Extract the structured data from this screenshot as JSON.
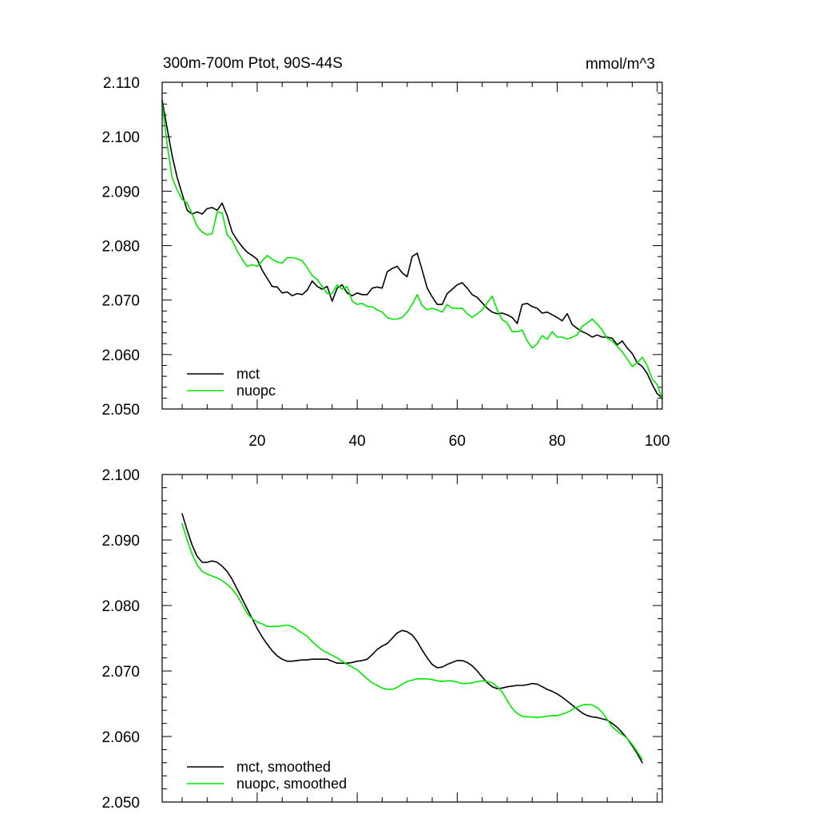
{
  "colors": {
    "mct": "#000000",
    "nuopc": "#00e600",
    "frame": "#000000",
    "background": "#ffffff"
  },
  "chart_data": [
    {
      "type": "line",
      "title_left": "300m-700m Ptot, 90S-44S",
      "title_right": "mmol/m^3",
      "xlim": [
        1,
        101
      ],
      "ylim": [
        2.05,
        2.11
      ],
      "xticks": [
        20,
        40,
        60,
        80,
        100
      ],
      "xtick_labels": [
        "20",
        "40",
        "60",
        "80",
        "100"
      ],
      "yticks": [
        2.05,
        2.06,
        2.07,
        2.08,
        2.09,
        2.1,
        2.11
      ],
      "ytick_labels": [
        "2.050",
        "2.060",
        "2.070",
        "2.080",
        "2.090",
        "2.100",
        "2.110"
      ],
      "legend_position": "bottom-left",
      "series": [
        {
          "name": "mct",
          "color": "#000000",
          "x": [
            1,
            2,
            3,
            4,
            5,
            6,
            7,
            8,
            9,
            10,
            11,
            12,
            13,
            14,
            15,
            16,
            17,
            18,
            19,
            20,
            21,
            22,
            23,
            24,
            25,
            26,
            27,
            28,
            29,
            30,
            31,
            32,
            33,
            34,
            35,
            36,
            37,
            38,
            39,
            40,
            41,
            42,
            43,
            44,
            45,
            46,
            47,
            48,
            49,
            50,
            51,
            52,
            53,
            54,
            55,
            56,
            57,
            58,
            59,
            60,
            61,
            62,
            63,
            64,
            65,
            66,
            67,
            68,
            69,
            70,
            71,
            72,
            73,
            74,
            75,
            76,
            77,
            78,
            79,
            80,
            81,
            82,
            83,
            84,
            85,
            86,
            87,
            88,
            89,
            90,
            91,
            92,
            93,
            94,
            95,
            96,
            97,
            98,
            99,
            100,
            101
          ],
          "y": [
            2.1067,
            2.1015,
            2.0965,
            2.0925,
            2.0895,
            2.0865,
            2.0858,
            2.0862,
            2.0858,
            2.0868,
            2.087,
            2.0865,
            2.0878,
            2.0855,
            2.0825,
            2.081,
            2.0798,
            2.0788,
            2.0782,
            2.0775,
            2.0755,
            2.074,
            2.0725,
            2.0724,
            2.0713,
            2.0715,
            2.0708,
            2.0712,
            2.071,
            2.0718,
            2.0735,
            2.0725,
            2.072,
            2.0725,
            2.0698,
            2.0722,
            2.0728,
            2.0713,
            2.0708,
            2.0713,
            2.071,
            2.071,
            2.0722,
            2.0724,
            2.0722,
            2.0752,
            2.0758,
            2.0762,
            2.075,
            2.0743,
            2.078,
            2.0786,
            2.0755,
            2.0722,
            2.0706,
            2.0692,
            2.0692,
            2.0712,
            2.072,
            2.0728,
            2.0732,
            2.0722,
            2.071,
            2.0705,
            2.0695,
            2.0685,
            2.0678,
            2.0675,
            2.0676,
            2.0673,
            2.0668,
            2.0657,
            2.0692,
            2.0694,
            2.0688,
            2.0685,
            2.0676,
            2.0678,
            2.0673,
            2.0668,
            2.0662,
            2.0675,
            2.0655,
            2.0648,
            2.0642,
            2.0638,
            2.0632,
            2.0636,
            2.0632,
            2.0632,
            2.063,
            2.0618,
            2.0625,
            2.0612,
            2.0602,
            2.0585,
            2.0578,
            2.0565,
            2.0545,
            2.0528,
            2.052
          ]
        },
        {
          "name": "nuopc",
          "color": "#00e600",
          "x": [
            1,
            2,
            3,
            4,
            5,
            6,
            7,
            8,
            9,
            10,
            11,
            12,
            13,
            14,
            15,
            16,
            17,
            18,
            19,
            20,
            21,
            22,
            23,
            24,
            25,
            26,
            27,
            28,
            29,
            30,
            31,
            32,
            33,
            34,
            35,
            36,
            37,
            38,
            39,
            40,
            41,
            42,
            43,
            44,
            45,
            46,
            47,
            48,
            49,
            50,
            51,
            52,
            53,
            54,
            55,
            56,
            57,
            58,
            59,
            60,
            61,
            62,
            63,
            64,
            65,
            66,
            67,
            68,
            69,
            70,
            71,
            72,
            73,
            74,
            75,
            76,
            77,
            78,
            79,
            80,
            81,
            82,
            83,
            84,
            85,
            86,
            87,
            88,
            89,
            90,
            91,
            92,
            93,
            94,
            95,
            96,
            97,
            98,
            99,
            100,
            101
          ],
          "y": [
            2.1062,
            2.0985,
            2.0925,
            2.0902,
            2.0885,
            2.0878,
            2.0858,
            2.0835,
            2.0825,
            2.082,
            2.0822,
            2.0862,
            2.086,
            2.082,
            2.081,
            2.079,
            2.0775,
            2.0762,
            2.0765,
            2.0762,
            2.0772,
            2.0782,
            2.0775,
            2.077,
            2.0768,
            2.0778,
            2.0778,
            2.0776,
            2.0772,
            2.076,
            2.0745,
            2.0738,
            2.0725,
            2.0712,
            2.0712,
            2.0728,
            2.072,
            2.0725,
            2.0698,
            2.0692,
            2.0694,
            2.0688,
            2.0688,
            2.0682,
            2.0678,
            2.0668,
            2.0665,
            2.0665,
            2.0668,
            2.0678,
            2.0692,
            2.071,
            2.069,
            2.0682,
            2.0685,
            2.0682,
            2.0678,
            2.0692,
            2.0685,
            2.0685,
            2.0685,
            2.0675,
            2.0668,
            2.0675,
            2.0682,
            2.0695,
            2.0707,
            2.0682,
            2.0664,
            2.0658,
            2.0642,
            2.0642,
            2.0645,
            2.0625,
            2.0612,
            2.062,
            2.0635,
            2.0628,
            2.0642,
            2.0632,
            2.0632,
            2.0628,
            2.0632,
            2.0636,
            2.0652,
            2.0658,
            2.0665,
            2.0656,
            2.0645,
            2.063,
            2.0625,
            2.0615,
            2.0605,
            2.0592,
            2.0578,
            2.0585,
            2.0595,
            2.058,
            2.0555,
            2.0545,
            2.0518
          ]
        }
      ]
    },
    {
      "type": "line",
      "xlim": [
        1,
        101
      ],
      "ylim": [
        2.05,
        2.1
      ],
      "xticks": [
        20,
        40,
        60,
        80,
        100
      ],
      "yticks": [
        2.05,
        2.06,
        2.07,
        2.08,
        2.09,
        2.1
      ],
      "ytick_labels": [
        "2.050",
        "2.060",
        "2.070",
        "2.080",
        "2.090",
        "2.100"
      ],
      "legend_position": "bottom-left",
      "series": [
        {
          "name": "mct, smoothed",
          "color": "#000000",
          "x": [
            5,
            6,
            7,
            8,
            9,
            10,
            11,
            12,
            13,
            14,
            15,
            16,
            17,
            18,
            19,
            20,
            21,
            22,
            23,
            24,
            25,
            26,
            27,
            28,
            29,
            30,
            31,
            32,
            33,
            34,
            35,
            36,
            37,
            38,
            39,
            40,
            41,
            42,
            43,
            44,
            45,
            46,
            47,
            48,
            49,
            50,
            51,
            52,
            53,
            54,
            55,
            56,
            57,
            58,
            59,
            60,
            61,
            62,
            63,
            64,
            65,
            66,
            67,
            68,
            69,
            70,
            71,
            72,
            73,
            74,
            75,
            76,
            77,
            78,
            79,
            80,
            81,
            82,
            83,
            84,
            85,
            86,
            87,
            88,
            89,
            90,
            91,
            92,
            93,
            94,
            95,
            96,
            97
          ],
          "y": [
            2.094,
            2.0915,
            2.0892,
            2.0875,
            2.0866,
            2.0866,
            2.0868,
            2.0866,
            2.086,
            2.0852,
            2.084,
            2.0825,
            2.081,
            2.0795,
            2.078,
            2.0765,
            2.0752,
            2.0741,
            2.0731,
            2.0723,
            2.0718,
            2.0715,
            2.0715,
            2.0716,
            2.0717,
            2.0717,
            2.0718,
            2.0718,
            2.0718,
            2.0718,
            2.0715,
            2.0712,
            2.0712,
            2.0712,
            2.0713,
            2.0715,
            2.0716,
            2.0718,
            2.0725,
            2.0733,
            2.0738,
            2.0742,
            2.075,
            2.0758,
            2.0762,
            2.076,
            2.0755,
            2.0745,
            2.0732,
            2.072,
            2.071,
            2.0705,
            2.0706,
            2.071,
            2.0713,
            2.0716,
            2.0716,
            2.0713,
            2.0708,
            2.07,
            2.0691,
            2.0682,
            2.0676,
            2.0673,
            2.0674,
            2.0676,
            2.0677,
            2.0678,
            2.0678,
            2.0679,
            2.0681,
            2.068,
            2.0676,
            2.0672,
            2.0669,
            2.0665,
            2.066,
            2.0654,
            2.0648,
            2.0642,
            2.0636,
            2.0632,
            2.063,
            2.0629,
            2.0627,
            2.0625,
            2.062,
            2.0614,
            2.0606,
            2.0597,
            2.0586,
            2.0574,
            2.056
          ]
        },
        {
          "name": "nuopc, smoothed",
          "color": "#00e600",
          "x": [
            5,
            6,
            7,
            8,
            9,
            10,
            11,
            12,
            13,
            14,
            15,
            16,
            17,
            18,
            19,
            20,
            21,
            22,
            23,
            24,
            25,
            26,
            27,
            28,
            29,
            30,
            31,
            32,
            33,
            34,
            35,
            36,
            37,
            38,
            39,
            40,
            41,
            42,
            43,
            44,
            45,
            46,
            47,
            48,
            49,
            50,
            51,
            52,
            53,
            54,
            55,
            56,
            57,
            58,
            59,
            60,
            61,
            62,
            63,
            64,
            65,
            66,
            67,
            68,
            69,
            70,
            71,
            72,
            73,
            74,
            75,
            76,
            77,
            78,
            79,
            80,
            81,
            82,
            83,
            84,
            85,
            86,
            87,
            88,
            89,
            90,
            91,
            92,
            93,
            94,
            95,
            96,
            97
          ],
          "y": [
            2.0925,
            2.09,
            2.0878,
            2.0862,
            2.0852,
            2.0848,
            2.0845,
            2.0842,
            2.0838,
            2.0832,
            2.0825,
            2.0815,
            2.0802,
            2.0788,
            2.078,
            2.0775,
            2.0772,
            2.0768,
            2.0768,
            2.0768,
            2.0769,
            2.077,
            2.0768,
            2.0763,
            2.0758,
            2.0753,
            2.0745,
            2.0738,
            2.0732,
            2.0728,
            2.0724,
            2.072,
            2.0715,
            2.071,
            2.0706,
            2.0702,
            2.0695,
            2.0688,
            2.0682,
            2.0678,
            2.0674,
            2.0672,
            2.0672,
            2.0675,
            2.068,
            2.0684,
            2.0686,
            2.0688,
            2.0688,
            2.0688,
            2.0687,
            2.0685,
            2.0684,
            2.0685,
            2.0685,
            2.0683,
            2.0681,
            2.0681,
            2.0682,
            2.0684,
            2.0685,
            2.0684,
            2.0682,
            2.0676,
            2.0668,
            2.0655,
            2.0643,
            2.0635,
            2.0631,
            2.063,
            2.063,
            2.0629,
            2.063,
            2.0631,
            2.0632,
            2.0632,
            2.0634,
            2.0637,
            2.0641,
            2.0645,
            2.0648,
            2.0649,
            2.0648,
            2.0644,
            2.0637,
            2.0626,
            2.0615,
            2.0608,
            2.0603,
            2.0597,
            2.0588,
            2.0577,
            2.0565
          ]
        }
      ]
    }
  ]
}
